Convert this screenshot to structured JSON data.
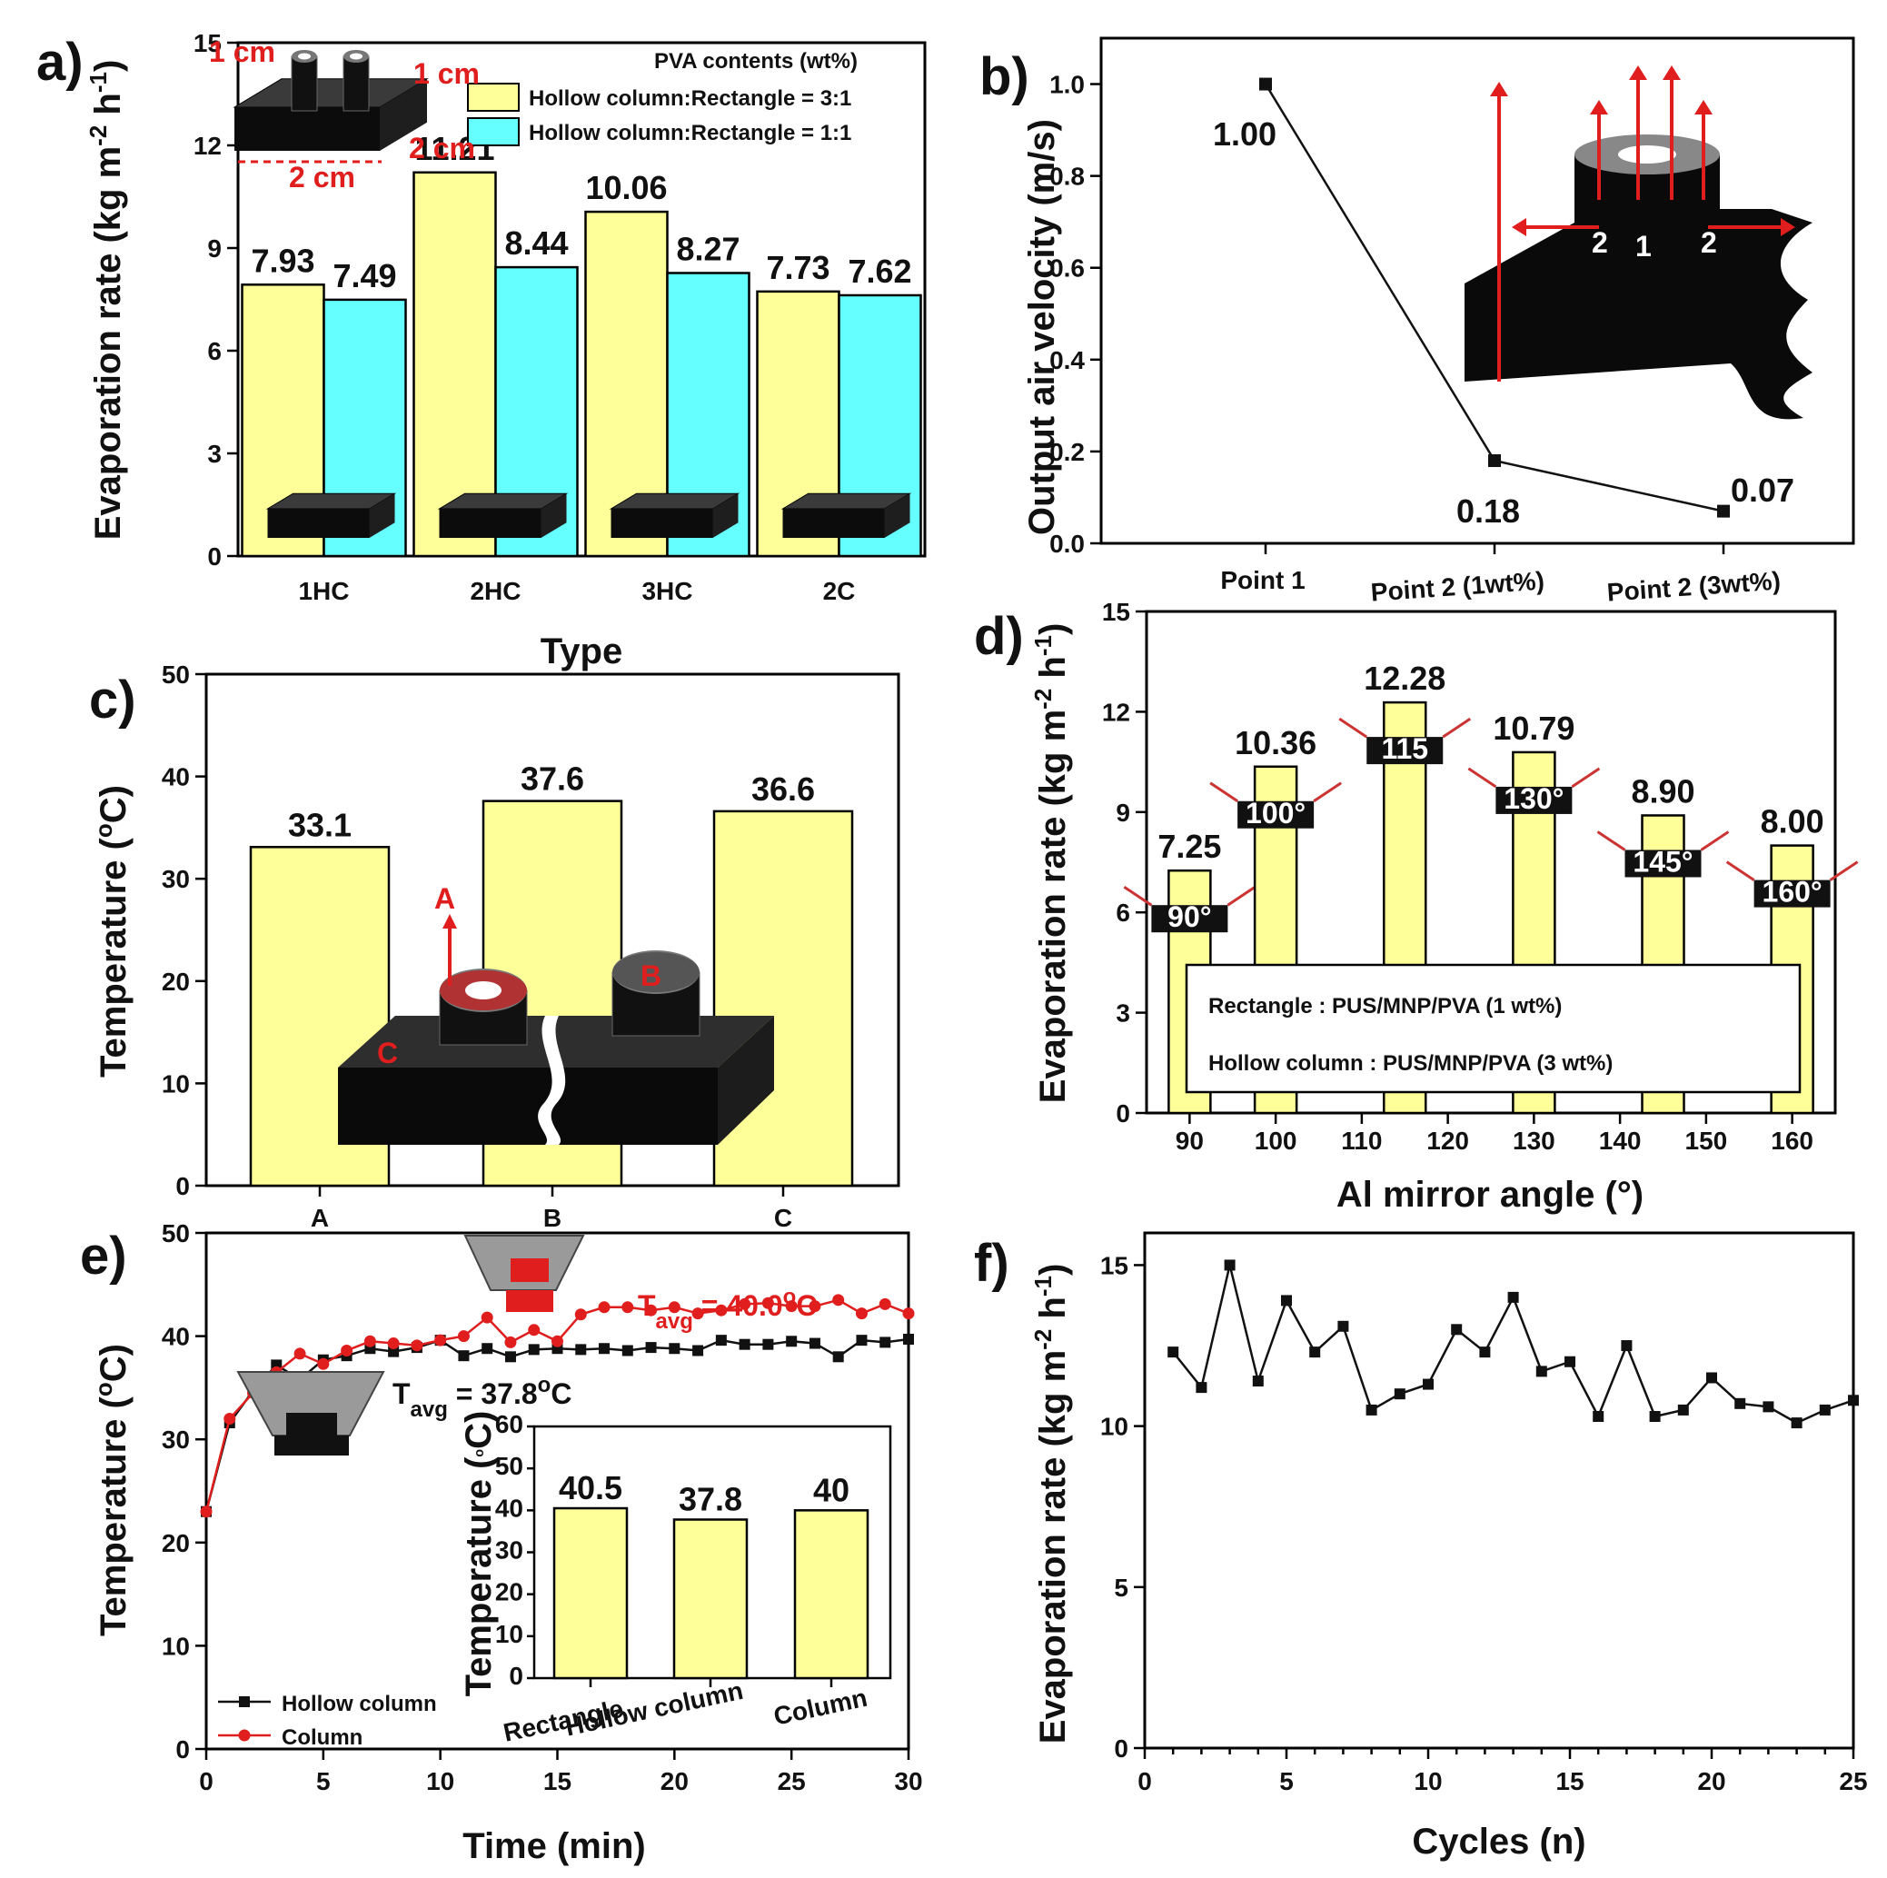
{
  "panels": {
    "a": "a)",
    "b": "b)",
    "c": "c)",
    "d": "d)",
    "e": "e)",
    "f": "f)"
  },
  "colors": {
    "yellow": "#ffff99",
    "cyan": "#66ffff",
    "red": "#e01e1e",
    "black": "#111111"
  },
  "chart_data": [
    {
      "id": "a",
      "type": "bar",
      "categories": [
        "1HC",
        "2HC",
        "3HC",
        "2C"
      ],
      "series": [
        {
          "name": "Hollow column:Rectangle = 3:1",
          "values": [
            7.93,
            11.21,
            10.06,
            7.73
          ],
          "color": "#ffff99"
        },
        {
          "name": "Hollow column:Rectangle = 1:1",
          "values": [
            7.49,
            8.44,
            8.27,
            7.62
          ],
          "color": "#66ffff"
        }
      ],
      "value_labels": [
        [
          "7.93",
          "11.21",
          "10.06",
          "7.73"
        ],
        [
          "7.49",
          "8.44",
          "8.27",
          "7.62"
        ]
      ],
      "xlabel": "Type",
      "ylabel": "Evaporation rate (kg m-2 h-1)",
      "ylim": [
        0,
        15
      ],
      "yticks": [
        0,
        3,
        6,
        9,
        12,
        15
      ],
      "legend_title": "PVA contents (wt%)",
      "dims": {
        "top": "1 cm",
        "side": "1 cm",
        "width": "2 cm",
        "depth": "2 cm"
      }
    },
    {
      "id": "b",
      "type": "line",
      "categories": [
        "Point 1",
        "Point 2 (1wt%)",
        "Point 2 (3wt%)"
      ],
      "values": [
        1.0,
        0.18,
        0.07
      ],
      "value_labels": [
        "1.00",
        "0.18",
        "0.07"
      ],
      "xlabel": "",
      "ylabel": "Output air velocity (m/s)",
      "ylim": [
        0,
        1.1
      ],
      "yticks": [
        "0.0",
        "0.2",
        "0.4",
        "0.6",
        "0.8",
        "1.0"
      ],
      "inset_labels": [
        "2",
        "1",
        "2"
      ]
    },
    {
      "id": "c",
      "type": "bar",
      "categories": [
        "A",
        "B",
        "C"
      ],
      "values": [
        33.1,
        37.6,
        36.6
      ],
      "value_labels": [
        "33.1",
        "37.6",
        "36.6"
      ],
      "xlabel": "",
      "ylabel": "Temperature (°C)",
      "ylim": [
        0,
        50
      ],
      "yticks": [
        0,
        10,
        20,
        30,
        40,
        50
      ],
      "inset_labels": [
        "A",
        "B",
        "C"
      ]
    },
    {
      "id": "d",
      "type": "bar",
      "x": [
        90,
        100,
        115,
        130,
        145,
        160
      ],
      "values": [
        7.25,
        10.36,
        12.28,
        10.79,
        8.9,
        8.0
      ],
      "value_labels": [
        "7.25",
        "10.36",
        "12.28",
        "10.79",
        "8.90",
        "8.00"
      ],
      "angle_tags": [
        "90°",
        "100°",
        "115",
        "130°",
        "145°",
        "160°"
      ],
      "xlabel": "Al mirror angle (°)",
      "ylabel": "Evaporation rate (kg m-2 h-1)",
      "xlim": [
        85,
        165
      ],
      "xticks": [
        90,
        100,
        110,
        120,
        130,
        140,
        150,
        160
      ],
      "ylim": [
        0,
        15
      ],
      "yticks": [
        0,
        3,
        6,
        9,
        12,
        15
      ],
      "box_lines": [
        "Rectangle : PUS/MNP/PVA  (1 wt%)",
        "Hollow column : PUS/MNP/PVA (3 wt%)"
      ]
    },
    {
      "id": "e",
      "type": "line",
      "x": [
        0,
        1,
        2,
        3,
        4,
        5,
        6,
        7,
        8,
        9,
        10,
        11,
        12,
        13,
        14,
        15,
        16,
        17,
        18,
        19,
        20,
        21,
        22,
        23,
        24,
        25,
        26,
        27,
        28,
        29,
        30
      ],
      "series": [
        {
          "name": "Hollow column",
          "values": [
            23,
            31.6,
            34.7,
            37.2,
            35.8,
            37.7,
            38.1,
            38.8,
            38.5,
            38.9,
            39.6,
            38.1,
            38.8,
            38,
            38.7,
            38.8,
            38.7,
            38.8,
            38.6,
            38.9,
            38.8,
            38.6,
            39.6,
            39.2,
            39.2,
            39.5,
            39.3,
            38,
            39.6,
            39.4,
            39.7
          ],
          "color": "#111111"
        },
        {
          "name": "Column",
          "values": [
            23,
            32,
            34.5,
            36.5,
            38.3,
            37.3,
            38.6,
            39.5,
            39.3,
            39.1,
            39.6,
            40,
            41.8,
            39.4,
            40.6,
            39.5,
            42.1,
            42.8,
            42.8,
            42.5,
            42.8,
            42.2,
            42.5,
            43.1,
            43.2,
            42.9,
            42.9,
            43.5,
            42.2,
            43.1,
            42.2
          ],
          "color": "#e01e1e"
        }
      ],
      "xlabel": "Time (min)",
      "ylabel": "Temperature (°C)",
      "xlim": [
        0,
        30
      ],
      "xticks": [
        0,
        5,
        10,
        15,
        20,
        25,
        30
      ],
      "ylim": [
        0,
        50
      ],
      "yticks": [
        0,
        10,
        20,
        30,
        40,
        50
      ],
      "tavg_red": {
        "prefix": "T",
        "sub": "avg",
        "text": " = 40.0",
        "sup": "o",
        "unit": "C"
      },
      "tavg_black": {
        "prefix": "T",
        "sub": "avg",
        "text": " = 37.8",
        "sup": "o",
        "unit": "C"
      },
      "inset": {
        "type": "bar",
        "categories": [
          "Rectangle",
          "Hollow column",
          "Column"
        ],
        "values": [
          40.5,
          37.8,
          40
        ],
        "value_labels": [
          "40.5",
          "37.8",
          "40"
        ],
        "ylabel": "Temperature (°C)",
        "ylim": [
          0,
          60
        ],
        "yticks": [
          0,
          10,
          20,
          30,
          40,
          50,
          60
        ]
      }
    },
    {
      "id": "f",
      "type": "line",
      "x": [
        1,
        2,
        3,
        4,
        5,
        6,
        7,
        8,
        9,
        10,
        11,
        12,
        13,
        14,
        15,
        16,
        17,
        18,
        19,
        20,
        21,
        22,
        23,
        24,
        25
      ],
      "values": [
        12.3,
        11.2,
        15,
        11.4,
        13.9,
        12.3,
        13.1,
        10.5,
        11,
        11.3,
        13,
        12.3,
        14,
        11.7,
        12,
        10.3,
        12.5,
        10.3,
        10.5,
        11.5,
        10.7,
        10.6,
        10.1,
        10.5,
        10.8
      ],
      "xlabel": "Cycles (n)",
      "ylabel": "Evaporation rate (kg m-2 h-1)",
      "xlim": [
        0,
        25
      ],
      "xticks": [
        0,
        5,
        10,
        15,
        20,
        25
      ],
      "ylim": [
        0,
        16
      ],
      "yticks": [
        0,
        5,
        10,
        15
      ]
    }
  ]
}
